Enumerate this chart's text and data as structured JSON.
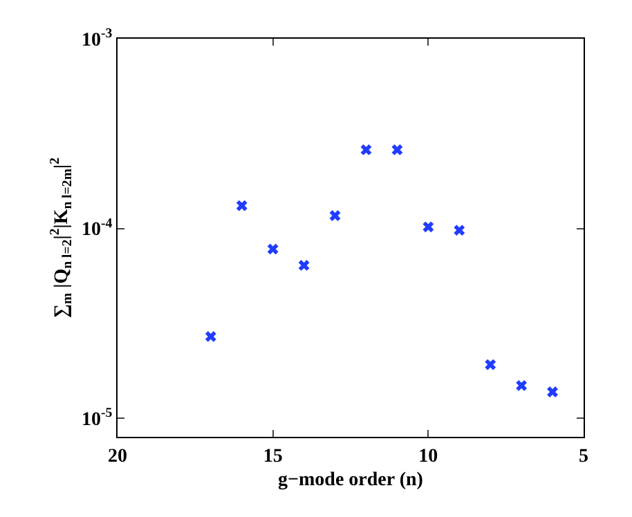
{
  "chart_data": {
    "type": "scatter",
    "xlabel": "g−mode order (n)",
    "ylabel": "∑$_{m}$ |Q$_{n l=2}$|$^{2}$|K$_{n l=2m}$|$^{2}$",
    "x": [
      17,
      16,
      15,
      14,
      13,
      12,
      11,
      10,
      9,
      8,
      7,
      6
    ],
    "series": [
      {
        "color": "#1f3cff",
        "values": [
          2.7e-05,
          0.000132,
          7.8e-05,
          6.4e-05,
          0.000117,
          0.00026,
          0.00026,
          0.000102,
          9.8e-05,
          1.92e-05,
          1.49e-05,
          1.38e-05
        ]
      }
    ],
    "marker": "cross",
    "log": "y",
    "xlim": [
      20,
      5
    ],
    "xticks": [
      20,
      15,
      10,
      5
    ],
    "ylim": [
      8e-06,
      0.001
    ],
    "yticks": [
      {
        "value": 1e-05,
        "label": "10$^{-5}$"
      },
      {
        "value": 0.0001,
        "label": "10$^{-4}$"
      },
      {
        "value": 0.001,
        "label": "10$^{-3}$"
      }
    ],
    "grid": false,
    "legend": false
  }
}
